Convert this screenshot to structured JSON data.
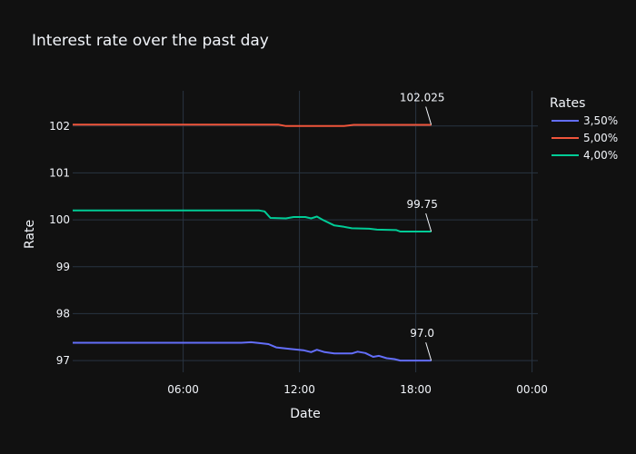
{
  "chart_data": {
    "type": "line",
    "title": "Interest rate over the past day",
    "xlabel": "Date",
    "ylabel": "Rate",
    "x_ticks": [
      "06:00",
      "12:00",
      "18:00",
      "00:00"
    ],
    "y_ticks": [
      "97",
      "98",
      "99",
      "100",
      "101",
      "102"
    ],
    "xlim_hours": [
      0.3,
      24.3
    ],
    "ylim": [
      96.75,
      102.75
    ],
    "grid": true,
    "legend": {
      "title": "Rates",
      "placement": "top-right"
    },
    "series": [
      {
        "name": "3,50%",
        "color": "#636efa",
        "x": [
          0.3,
          1,
          2,
          3,
          4,
          5,
          6,
          7,
          8,
          9,
          9.5,
          10,
          10.4,
          10.8,
          11.5,
          12.2,
          12.6,
          12.9,
          13.3,
          13.8,
          14.3,
          14.7,
          15.0,
          15.4,
          15.8,
          16.1,
          16.5,
          16.9,
          17.2,
          17.5,
          18,
          18.8
        ],
        "y": [
          97.38,
          97.38,
          97.38,
          97.38,
          97.38,
          97.38,
          97.38,
          97.38,
          97.38,
          97.38,
          97.39,
          97.37,
          97.35,
          97.28,
          97.25,
          97.22,
          97.18,
          97.23,
          97.18,
          97.15,
          97.15,
          97.15,
          97.19,
          97.16,
          97.08,
          97.1,
          97.05,
          97.03,
          97.0,
          97.0,
          97.0,
          97.0
        ]
      },
      {
        "name": "5,00%",
        "color": "#ef553b",
        "x": [
          0.3,
          2,
          4,
          6,
          8,
          10,
          10.9,
          11.3,
          12,
          13,
          14,
          14.3,
          14.8,
          16,
          17,
          18,
          18.8
        ],
        "y": [
          102.03,
          102.03,
          102.03,
          102.03,
          102.03,
          102.03,
          102.03,
          102.0,
          102.0,
          102.0,
          102.0,
          102.0,
          102.025,
          102.025,
          102.025,
          102.025,
          102.025
        ]
      },
      {
        "name": "4,00%",
        "color": "#00cc96",
        "x": [
          0.3,
          2,
          4,
          6,
          8,
          9,
          9.9,
          10.2,
          10.5,
          11.3,
          11.7,
          12.3,
          12.6,
          12.9,
          13.2,
          13.8,
          14.3,
          14.7,
          15.6,
          16.0,
          17.0,
          17.2,
          18.8
        ],
        "y": [
          100.2,
          100.2,
          100.2,
          100.2,
          100.2,
          100.2,
          100.2,
          100.18,
          100.04,
          100.03,
          100.06,
          100.06,
          100.03,
          100.07,
          100.0,
          99.88,
          99.85,
          99.82,
          99.81,
          99.79,
          99.78,
          99.75,
          99.75
        ]
      }
    ],
    "annotations": [
      {
        "text": "102.025",
        "x": 18.8,
        "y": 102.025
      },
      {
        "text": "99.75",
        "x": 18.8,
        "y": 99.75
      },
      {
        "text": "97.0",
        "x": 18.8,
        "y": 97.0
      }
    ]
  }
}
